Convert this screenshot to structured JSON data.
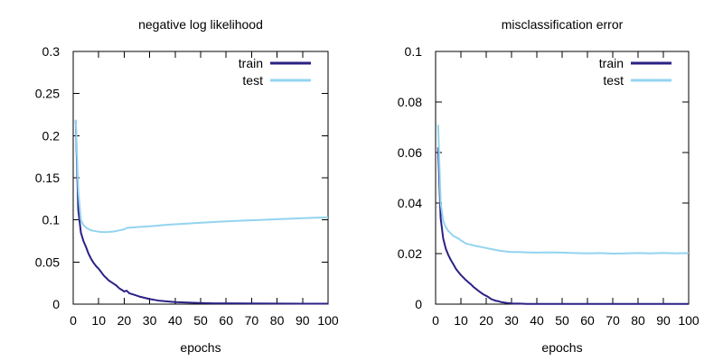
{
  "figure": {
    "background": "#ffffff",
    "axis_color": "#000000",
    "text_color": "#000000"
  },
  "colors": {
    "train": "#2a2185",
    "test": "#93d4ef"
  },
  "chart_data": [
    {
      "type": "line",
      "title": "negative log likelihood",
      "xlabel": "epochs",
      "ylabel": "",
      "xlim": [
        0,
        100
      ],
      "ylim": [
        0,
        0.3
      ],
      "xticks": [
        0,
        10,
        20,
        30,
        40,
        50,
        60,
        70,
        80,
        90,
        100
      ],
      "xtick_labels": [
        "0",
        "10",
        "20",
        "30",
        "40",
        "50",
        "60",
        "70",
        "80",
        "90",
        "100"
      ],
      "yticks": [
        0,
        0.05,
        0.1,
        0.15,
        0.2,
        0.25,
        0.3
      ],
      "ytick_labels": [
        "0",
        "0.05",
        "0.1",
        "0.15",
        "0.2",
        "0.25",
        "0.3"
      ],
      "grid": false,
      "legend": {
        "position": "top-right-inside",
        "entries": [
          "train",
          "test"
        ]
      },
      "series": [
        {
          "name": "train",
          "color": "#2a2185",
          "points": [
            [
              1,
              0.218
            ],
            [
              2,
              0.112
            ],
            [
              3,
              0.085
            ],
            [
              4,
              0.075
            ],
            [
              5,
              0.068
            ],
            [
              6,
              0.06
            ],
            [
              7,
              0.054
            ],
            [
              8,
              0.049
            ],
            [
              9,
              0.045
            ],
            [
              10,
              0.042
            ],
            [
              11,
              0.038
            ],
            [
              12,
              0.034
            ],
            [
              13,
              0.031
            ],
            [
              14,
              0.028
            ],
            [
              15,
              0.026
            ],
            [
              16,
              0.024
            ],
            [
              17,
              0.022
            ],
            [
              18,
              0.019
            ],
            [
              19,
              0.017
            ],
            [
              20,
              0.015
            ],
            [
              21,
              0.016
            ],
            [
              22,
              0.013
            ],
            [
              24,
              0.011
            ],
            [
              26,
              0.009
            ],
            [
              28,
              0.0075
            ],
            [
              30,
              0.006
            ],
            [
              32,
              0.005
            ],
            [
              34,
              0.004
            ],
            [
              36,
              0.0035
            ],
            [
              38,
              0.003
            ],
            [
              40,
              0.0025
            ],
            [
              45,
              0.0018
            ],
            [
              50,
              0.0013
            ],
            [
              55,
              0.001
            ],
            [
              60,
              0.001
            ],
            [
              70,
              0.0008
            ],
            [
              80,
              0.0006
            ],
            [
              90,
              0.0005
            ],
            [
              100,
              0.0005
            ]
          ]
        },
        {
          "name": "test",
          "color": "#93d4ef",
          "points": [
            [
              1,
              0.219
            ],
            [
              2,
              0.135
            ],
            [
              3,
              0.1
            ],
            [
              4,
              0.094
            ],
            [
              5,
              0.091
            ],
            [
              6,
              0.089
            ],
            [
              7,
              0.0878
            ],
            [
              8,
              0.087
            ],
            [
              10,
              0.086
            ],
            [
              12,
              0.0855
            ],
            [
              14,
              0.0857
            ],
            [
              16,
              0.0862
            ],
            [
              18,
              0.0875
            ],
            [
              20,
              0.0888
            ],
            [
              21,
              0.0905
            ],
            [
              23,
              0.091
            ],
            [
              25,
              0.0915
            ],
            [
              28,
              0.092
            ],
            [
              30,
              0.0925
            ],
            [
              33,
              0.0932
            ],
            [
              36,
              0.094
            ],
            [
              40,
              0.0948
            ],
            [
              44,
              0.0955
            ],
            [
              48,
              0.0963
            ],
            [
              52,
              0.097
            ],
            [
              56,
              0.0976
            ],
            [
              60,
              0.0982
            ],
            [
              64,
              0.0988
            ],
            [
              68,
              0.0993
            ],
            [
              72,
              0.0998
            ],
            [
              76,
              0.1003
            ],
            [
              80,
              0.1008
            ],
            [
              85,
              0.1014
            ],
            [
              90,
              0.102
            ],
            [
              95,
              0.1025
            ],
            [
              100,
              0.103
            ]
          ]
        }
      ]
    },
    {
      "type": "line",
      "title": "misclassification error",
      "xlabel": "epochs",
      "ylabel": "",
      "xlim": [
        0,
        100
      ],
      "ylim": [
        0,
        0.1
      ],
      "xticks": [
        0,
        10,
        20,
        30,
        40,
        50,
        60,
        70,
        80,
        90,
        100
      ],
      "xtick_labels": [
        "0",
        "10",
        "20",
        "30",
        "40",
        "50",
        "60",
        "70",
        "80",
        "90",
        "100"
      ],
      "yticks": [
        0,
        0.02,
        0.04,
        0.06,
        0.08,
        0.1
      ],
      "ytick_labels": [
        "0",
        "0.02",
        "0.04",
        "0.06",
        "0.08",
        "0.1"
      ],
      "grid": false,
      "legend": {
        "position": "top-right-inside",
        "entries": [
          "train",
          "test"
        ]
      },
      "series": [
        {
          "name": "train",
          "color": "#2a2185",
          "points": [
            [
              1,
              0.062
            ],
            [
              2,
              0.034
            ],
            [
              3,
              0.026
            ],
            [
              4,
              0.022
            ],
            [
              5,
              0.0195
            ],
            [
              6,
              0.0175
            ],
            [
              7,
              0.0158
            ],
            [
              8,
              0.014
            ],
            [
              9,
              0.0127
            ],
            [
              10,
              0.0115
            ],
            [
              11,
              0.0105
            ],
            [
              12,
              0.0095
            ],
            [
              13,
              0.0086
            ],
            [
              14,
              0.0078
            ],
            [
              15,
              0.0068
            ],
            [
              16,
              0.006
            ],
            [
              17,
              0.0052
            ],
            [
              18,
              0.0045
            ],
            [
              19,
              0.0038
            ],
            [
              20,
              0.0033
            ],
            [
              21,
              0.0027
            ],
            [
              22,
              0.002
            ],
            [
              23,
              0.0016
            ],
            [
              24,
              0.0013
            ],
            [
              25,
              0.0011
            ],
            [
              26,
              0.0008
            ],
            [
              28,
              0.0005
            ],
            [
              30,
              0.0003
            ],
            [
              33,
              0.0002
            ],
            [
              36,
              0.0001
            ],
            [
              40,
              0.0001
            ],
            [
              50,
              0.0001
            ],
            [
              60,
              0.0001
            ],
            [
              70,
              0.0001
            ],
            [
              80,
              0.0001
            ],
            [
              90,
              0.0001
            ],
            [
              100,
              0.0001
            ]
          ]
        },
        {
          "name": "test",
          "color": "#93d4ef",
          "points": [
            [
              1,
              0.071
            ],
            [
              2,
              0.04
            ],
            [
              3,
              0.033
            ],
            [
              4,
              0.0305
            ],
            [
              5,
              0.029
            ],
            [
              6,
              0.028
            ],
            [
              7,
              0.027
            ],
            [
              8,
              0.0265
            ],
            [
              9,
              0.026
            ],
            [
              10,
              0.0252
            ],
            [
              12,
              0.024
            ],
            [
              14,
              0.0235
            ],
            [
              16,
              0.023
            ],
            [
              18,
              0.0226
            ],
            [
              20,
              0.0222
            ],
            [
              22,
              0.0218
            ],
            [
              25,
              0.0212
            ],
            [
              28,
              0.0208
            ],
            [
              30,
              0.0206
            ],
            [
              33,
              0.0206
            ],
            [
              36,
              0.0205
            ],
            [
              40,
              0.0204
            ],
            [
              45,
              0.0205
            ],
            [
              50,
              0.0204
            ],
            [
              55,
              0.0202
            ],
            [
              60,
              0.0201
            ],
            [
              65,
              0.0202
            ],
            [
              70,
              0.02
            ],
            [
              75,
              0.0201
            ],
            [
              80,
              0.0202
            ],
            [
              85,
              0.0201
            ],
            [
              90,
              0.0203
            ],
            [
              95,
              0.0201
            ],
            [
              100,
              0.0202
            ]
          ]
        }
      ]
    }
  ]
}
